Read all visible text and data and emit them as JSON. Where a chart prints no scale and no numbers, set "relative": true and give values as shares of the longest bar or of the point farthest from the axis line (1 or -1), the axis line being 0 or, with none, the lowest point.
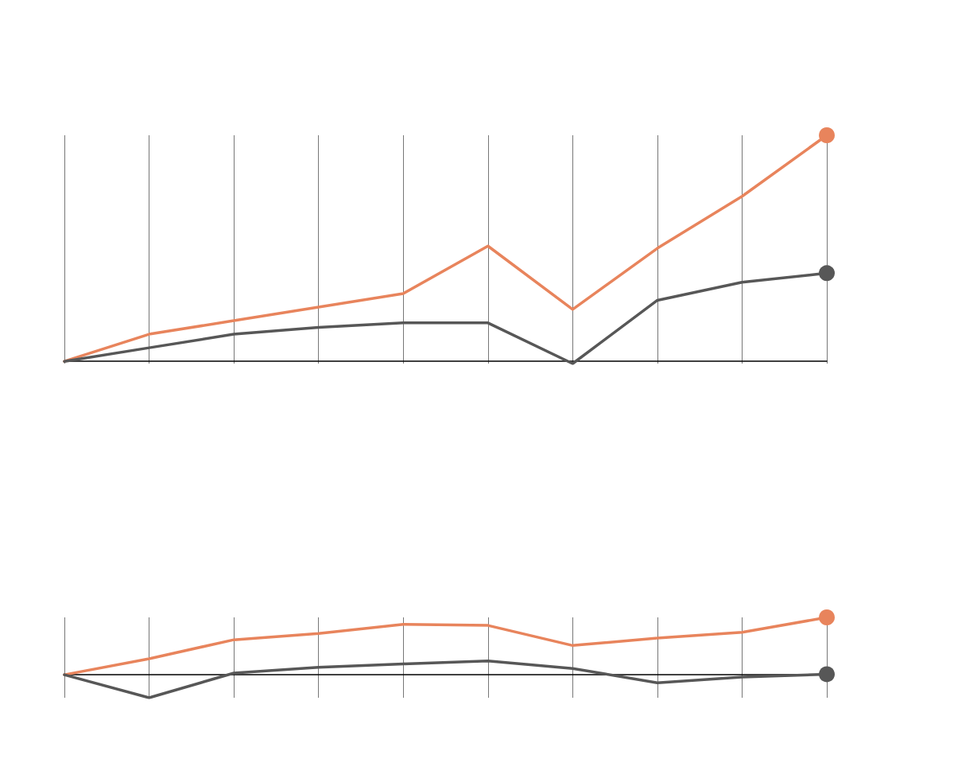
{
  "chart_data": [
    {
      "type": "line",
      "relative": true,
      "grid": "x",
      "categories": [
        null,
        null,
        null,
        null,
        null,
        null,
        null,
        null,
        null,
        null
      ],
      "series": [
        {
          "color": "#e8845c",
          "values": [
            0,
            0.12,
            0.18,
            0.24,
            0.3,
            0.51,
            0.23,
            0.5,
            0.73,
            1
          ]
        },
        {
          "color": "#575757",
          "values": [
            0,
            0.06,
            0.12,
            0.15,
            0.17,
            0.17,
            -0.01,
            0.27,
            0.35,
            0.39
          ]
        }
      ]
    },
    {
      "type": "line",
      "relative": true,
      "grid": "x",
      "categories": [
        null,
        null,
        null,
        null,
        null,
        null,
        null,
        null,
        null,
        null
      ],
      "series": [
        {
          "color": "#e8845c",
          "values": [
            0,
            0.28,
            0.61,
            0.72,
            0.88,
            0.86,
            0.51,
            0.64,
            0.74,
            1
          ]
        },
        {
          "color": "#575757",
          "values": [
            0,
            -0.4,
            0.03,
            0.13,
            0.19,
            0.24,
            0.11,
            -0.14,
            -0.04,
            0.01
          ]
        }
      ]
    }
  ]
}
